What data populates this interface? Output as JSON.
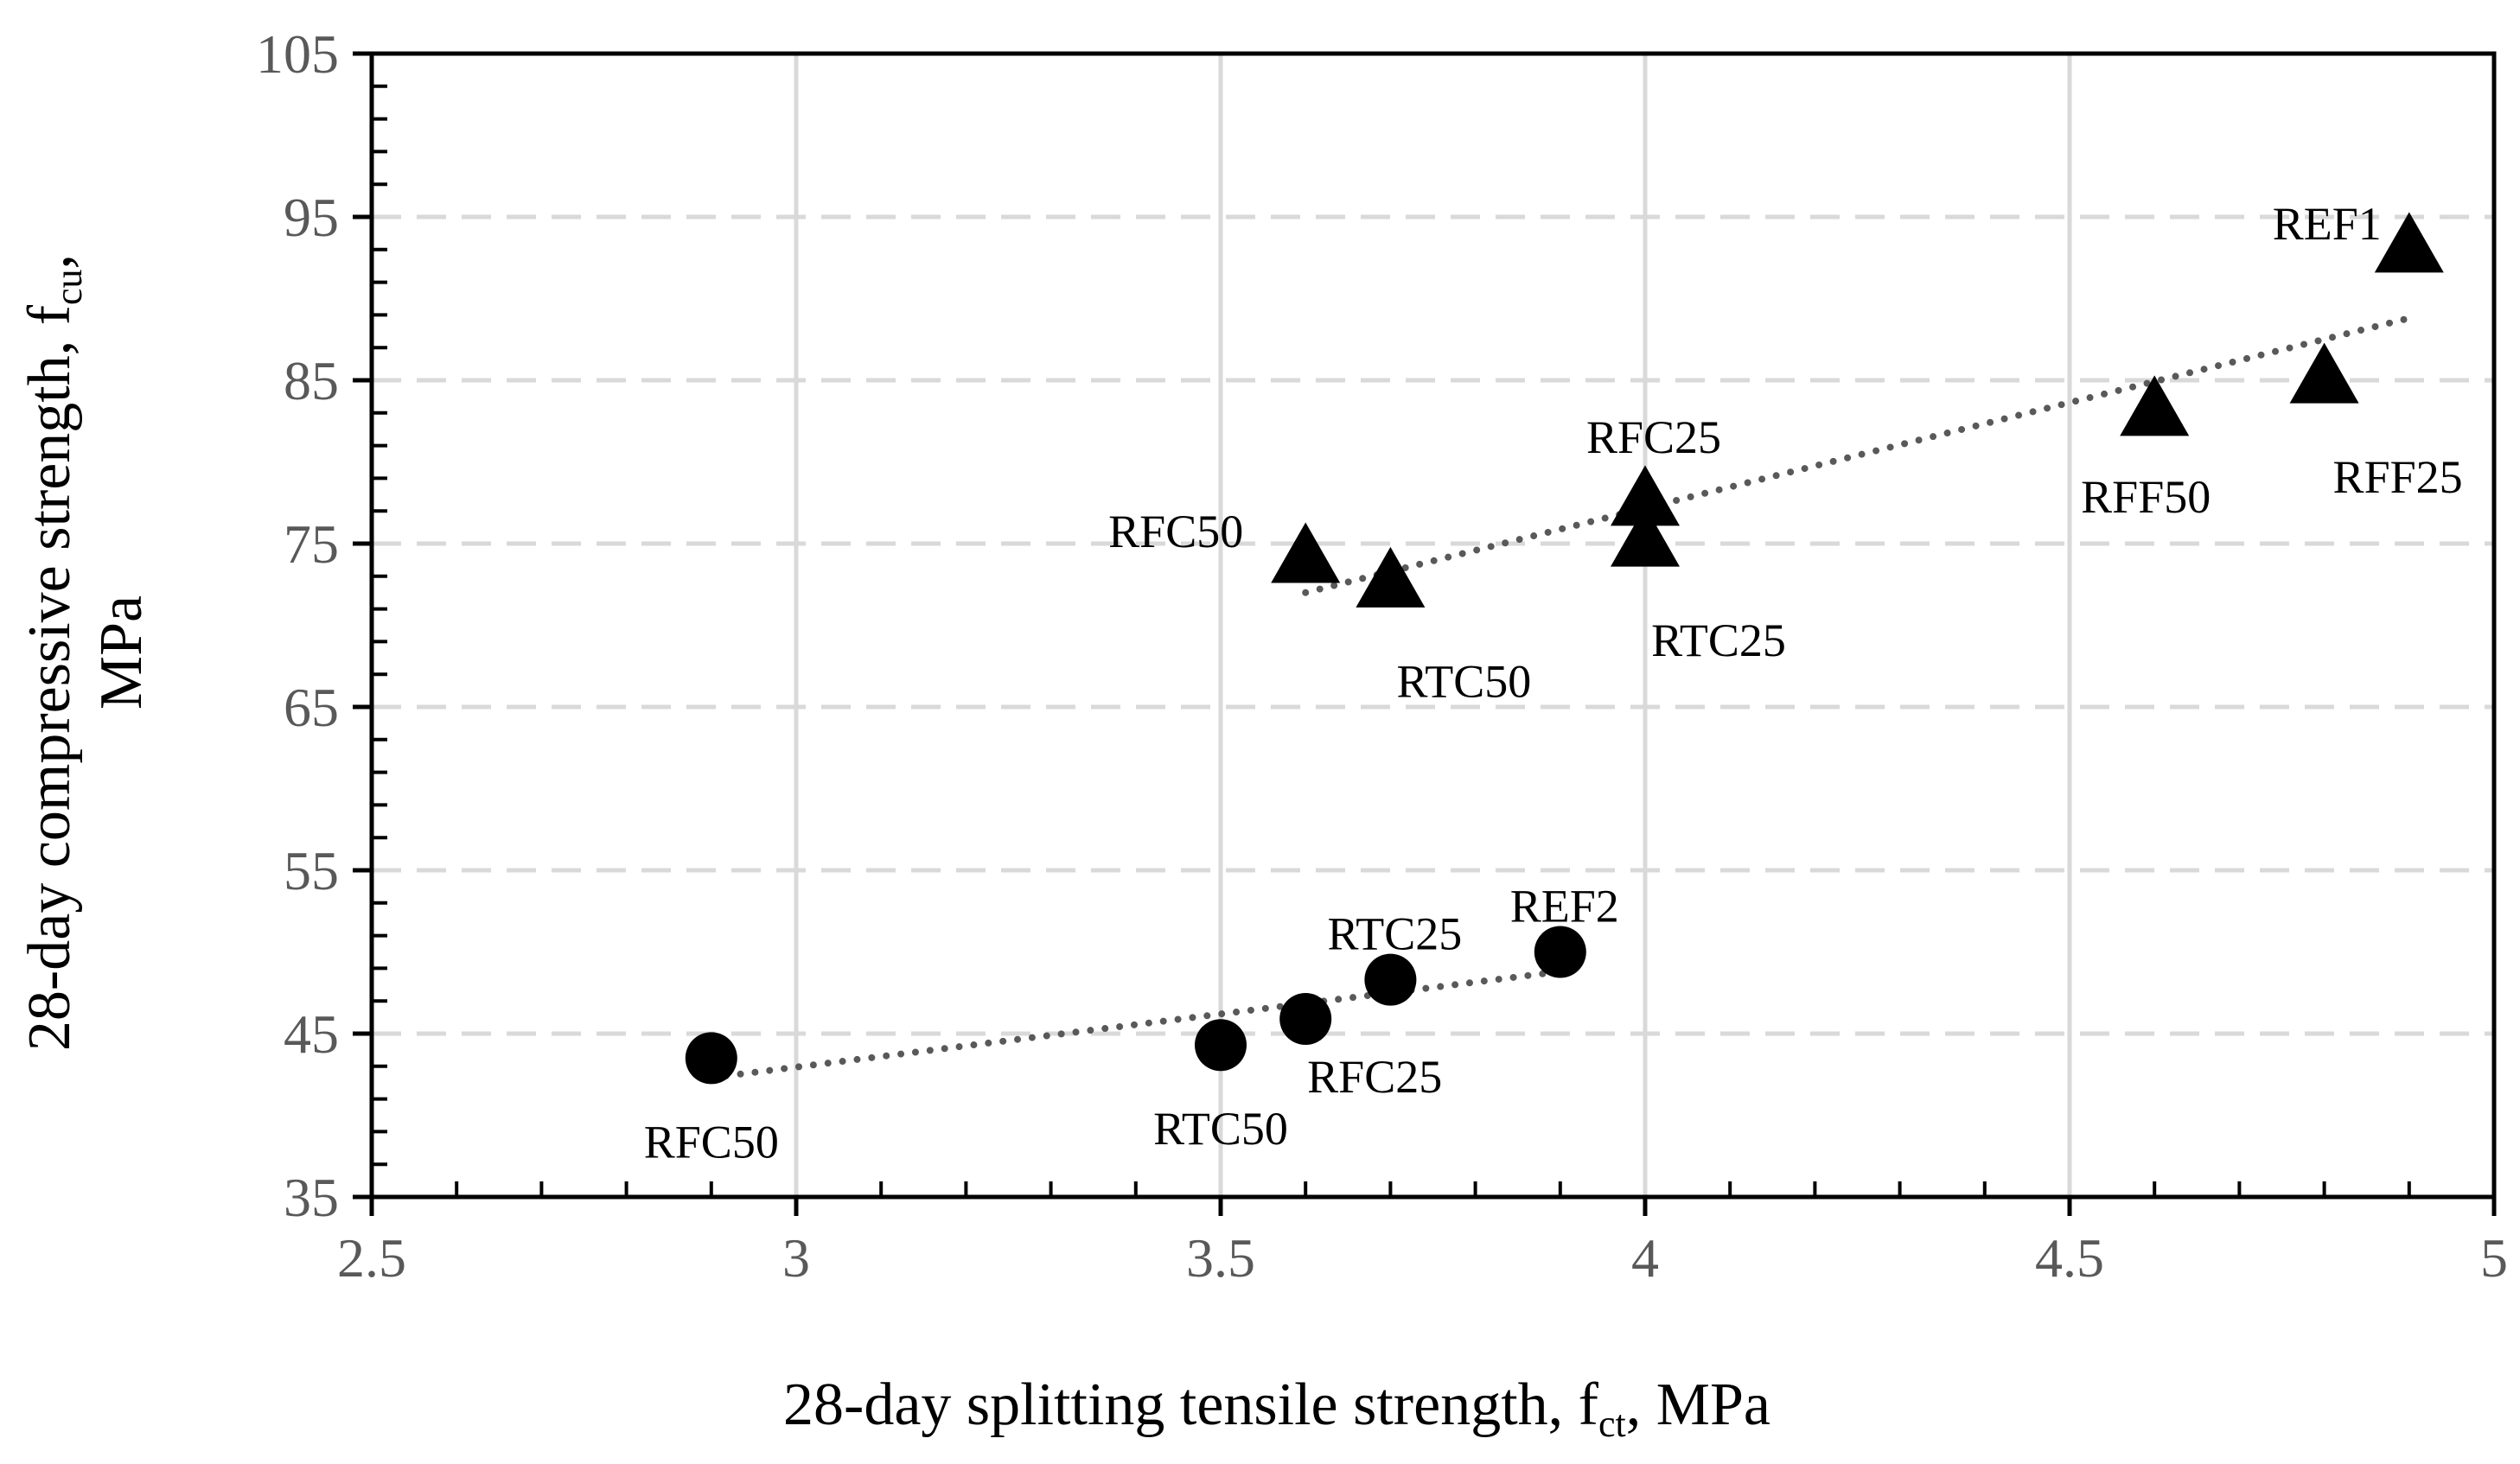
{
  "chart_data": {
    "type": "scatter",
    "title": "",
    "xlabel": {
      "main": "28-day splitting tensile strength, f",
      "sub": "ct",
      "tail": ", MPa"
    },
    "ylabel": {
      "main": "28-day compressive strength, f",
      "sub": "cu",
      "tail": ",",
      "line2": "MPa"
    },
    "xlim": [
      2.5,
      5
    ],
    "ylim": [
      35,
      105
    ],
    "x_ticks": [
      2.5,
      3,
      3.5,
      4,
      4.5,
      5
    ],
    "x_tick_labels": [
      "2.5",
      "3",
      "3.5",
      "4",
      "4.5",
      "5"
    ],
    "y_ticks": [
      35,
      45,
      55,
      65,
      75,
      85,
      95,
      105
    ],
    "y_tick_labels": [
      "35",
      "45",
      "55",
      "65",
      "75",
      "85",
      "95",
      "105"
    ],
    "grid": {
      "vertical": "solid",
      "horizontal": "dashed"
    },
    "series": [
      {
        "name": "triangle-series",
        "marker": "triangle",
        "points": [
          {
            "label": "RFC50",
            "x": 3.6,
            "y": 74,
            "label_pos": "left"
          },
          {
            "label": "RTC50",
            "x": 3.7,
            "y": 72.5,
            "label_pos": "below-right"
          },
          {
            "label": "RFC25",
            "x": 4.0,
            "y": 77.5,
            "label_pos": "above"
          },
          {
            "label": "RTC25",
            "x": 4.0,
            "y": 75,
            "label_pos": "below-right"
          },
          {
            "label": "RFF50",
            "x": 4.6,
            "y": 83,
            "label_pos": "below-left"
          },
          {
            "label": "RFF25",
            "x": 4.8,
            "y": 85,
            "label_pos": "below-right"
          },
          {
            "label": "REF1",
            "x": 4.9,
            "y": 93,
            "label_pos": "above-left"
          }
        ],
        "trendline": {
          "x": [
            3.6,
            4.9
          ],
          "y": [
            72,
            88.8
          ]
        }
      },
      {
        "name": "circle-series",
        "marker": "circle",
        "points": [
          {
            "label": "RFC50",
            "x": 2.9,
            "y": 43.5,
            "label_pos": "below"
          },
          {
            "label": "RTC50",
            "x": 3.5,
            "y": 44.3,
            "label_pos": "below"
          },
          {
            "label": "RFC25",
            "x": 3.6,
            "y": 45.9,
            "label_pos": "below-right"
          },
          {
            "label": "RTC25",
            "x": 3.7,
            "y": 48.3,
            "label_pos": "above"
          },
          {
            "label": "REF2",
            "x": 3.9,
            "y": 50,
            "label_pos": "above"
          }
        ],
        "trendline": {
          "x": [
            2.9,
            3.9
          ],
          "y": [
            42.3,
            48.8
          ]
        }
      }
    ],
    "colors": {
      "marker": "#000000",
      "trend": "#595959",
      "grid": "#d9d9d9",
      "axis": "#000000",
      "tick_text": "#595959"
    }
  }
}
